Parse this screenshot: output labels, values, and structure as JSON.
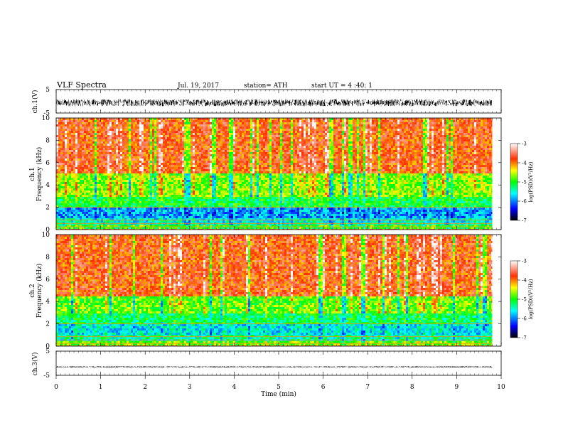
{
  "header": {
    "title": "VLF  Spectra",
    "date": "Jul.  19,  2017",
    "station": "station= ATH",
    "start_ut": "start  UT  =   4  :40: 1"
  },
  "colors": {
    "spectrum": [
      "#000000",
      "#0000ff",
      "#00ffff",
      "#00ff00",
      "#ffff00",
      "#ff3000",
      "#ffffff"
    ]
  },
  "chart_data": [
    {
      "type": "line",
      "ylabel": "ch.1(V)",
      "ylim": [
        -5,
        5
      ],
      "yticks": [
        "5",
        "-5"
      ],
      "xlim": [
        0,
        10
      ],
      "description_values": {
        "mean_level": -0.6,
        "noise_amplitude": 1.5
      }
    },
    {
      "type": "heatmap",
      "channel_label": "ch.1",
      "ylabel": "Frequency  (kHz)",
      "ylim": [
        0,
        10
      ],
      "yticks": [
        "10",
        "8",
        "6",
        "4",
        "2",
        "0"
      ],
      "xlim": [
        0,
        10
      ],
      "data_end_min": 9.8,
      "colorbar": {
        "label": "log(PSD)(V²/Hz)",
        "range": [
          -7,
          -3
        ],
        "ticks": [
          "-3",
          "-4",
          "-5",
          "-6",
          "-7"
        ]
      },
      "bands": [
        {
          "from_khz": 0,
          "to_khz": 0.5,
          "level": -5.0
        },
        {
          "from_khz": 0.5,
          "to_khz": 1.0,
          "level": -5.6
        },
        {
          "from_khz": 1.0,
          "to_khz": 2.0,
          "level": -5.9
        },
        {
          "from_khz": 2.0,
          "to_khz": 3.0,
          "level": -5.1
        },
        {
          "from_khz": 3.0,
          "to_khz": 5.0,
          "level": -4.7
        },
        {
          "from_khz": 5.0,
          "to_khz": 10.0,
          "level": -3.8
        }
      ]
    },
    {
      "type": "heatmap",
      "channel_label": "ch.2",
      "ylabel": "Frequency  (kHz)",
      "ylim": [
        0,
        10
      ],
      "yticks": [
        "10",
        "8",
        "6",
        "4",
        "2",
        "0"
      ],
      "xlim": [
        0,
        10
      ],
      "data_end_min": 9.8,
      "colorbar": {
        "label": "log(PSD)(V²/Hz)",
        "range": [
          -7,
          -3
        ],
        "ticks": [
          "-3",
          "-4",
          "-5",
          "-6",
          "-7"
        ]
      },
      "bands": [
        {
          "from_khz": 0,
          "to_khz": 0.5,
          "level": -4.8
        },
        {
          "from_khz": 0.5,
          "to_khz": 1.0,
          "level": -5.4
        },
        {
          "from_khz": 1.0,
          "to_khz": 2.0,
          "level": -5.6
        },
        {
          "from_khz": 2.0,
          "to_khz": 3.0,
          "level": -5.2
        },
        {
          "from_khz": 3.0,
          "to_khz": 4.5,
          "level": -4.8
        },
        {
          "from_khz": 4.5,
          "to_khz": 10.0,
          "level": -3.8
        }
      ]
    },
    {
      "type": "line",
      "ylabel": "ch.3(V)",
      "ylim": [
        -5,
        5
      ],
      "yticks": [
        "5",
        "-5"
      ],
      "xlim": [
        0,
        10
      ],
      "xlabel": "Time  (min)",
      "xticks": [
        "0",
        "1",
        "2",
        "3",
        "4",
        "5",
        "6",
        "7",
        "8",
        "9",
        "10"
      ],
      "description_values": {
        "mean_level": -1.5,
        "noise_amplitude": 0.2
      }
    }
  ]
}
